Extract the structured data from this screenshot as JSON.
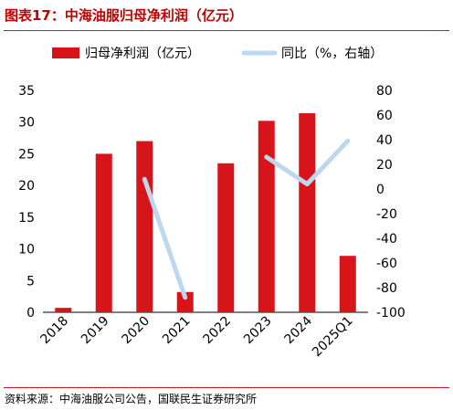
{
  "title": "图表17：中海油服归母净利润（亿元）",
  "source": "资料来源：中海油服公司公告，国联民生证券研究所",
  "colors": {
    "bar": "#d7141a",
    "line": "#bdd7ee",
    "rule": "#d0191e"
  },
  "chart_data": {
    "type": "bar",
    "categories": [
      "2018",
      "2019",
      "2020",
      "2021",
      "2022",
      "2023",
      "2024",
      "2025Q1"
    ],
    "series": [
      {
        "name": "归母净利润（亿元）",
        "type": "bar",
        "axis": "left",
        "values": [
          0.7,
          25.0,
          27.0,
          3.2,
          23.5,
          30.2,
          31.4,
          8.9
        ]
      },
      {
        "name": "同比（%，右轴）",
        "type": "line",
        "axis": "right",
        "values": [
          null,
          null,
          8,
          -88,
          null,
          26,
          4,
          39
        ]
      }
    ],
    "y_left": {
      "min": 0,
      "max": 35,
      "ticks": [
        0,
        5,
        10,
        15,
        20,
        25,
        30,
        35
      ]
    },
    "y_right": {
      "min": -100,
      "max": 80,
      "ticks": [
        -100,
        -80,
        -60,
        -40,
        -20,
        0,
        20,
        40,
        60,
        80
      ]
    },
    "legend_position": "top",
    "grid": false
  }
}
